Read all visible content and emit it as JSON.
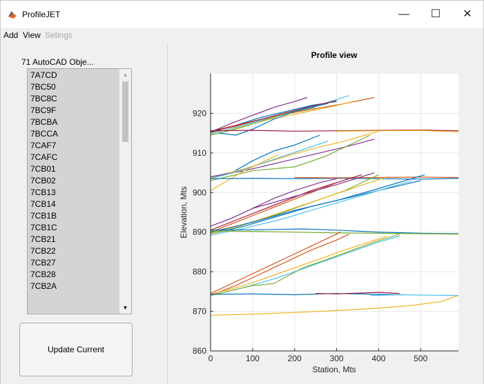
{
  "window": {
    "title": "ProfileJET"
  },
  "window_controls": {
    "minimize": "—",
    "maximize": "☐",
    "close": "✕"
  },
  "menu": {
    "items": [
      "Add",
      "View",
      "Setings"
    ]
  },
  "left_panel": {
    "list_label": "71 AutoCAD Obje...",
    "items": [
      "7A7CD",
      "7BC50",
      "7BC8C",
      "7BC9F",
      "7BCBA",
      "7BCCA",
      "7CAF7",
      "7CAFC",
      "7CB01",
      "7CB02",
      "7CB13",
      "7CB14",
      "7CB1B",
      "7CB1C",
      "7CB21",
      "7CB22",
      "7CB27",
      "7CB28",
      "7CB2A"
    ],
    "update_button": "Update Current"
  },
  "chart_data": {
    "type": "line",
    "title": "Profile view",
    "xlabel": "Station, Mts",
    "ylabel": "Elevation, Mts",
    "xlim": [
      0,
      590
    ],
    "ylim": [
      860,
      930
    ],
    "xticks": [
      0,
      100,
      200,
      300,
      400,
      500
    ],
    "yticks": [
      860,
      870,
      880,
      890,
      900,
      910,
      920
    ],
    "grid": true,
    "colors": [
      "#0072bd",
      "#d95319",
      "#edb120",
      "#7e2f8e",
      "#77ac30",
      "#4dbeee",
      "#a2142f"
    ],
    "series": [
      {
        "color": "#0072bd",
        "x": [
          0,
          60,
          120,
          180,
          240,
          300
        ],
        "y": [
          915.2,
          917.0,
          919.0,
          920.5,
          922.0,
          923.0
        ]
      },
      {
        "color": "#d95319",
        "x": [
          0,
          80,
          160,
          240,
          320,
          390
        ],
        "y": [
          915.5,
          917.5,
          919.5,
          921.0,
          922.5,
          924.0
        ]
      },
      {
        "color": "#edb120",
        "x": [
          0,
          70,
          140,
          210,
          280,
          340
        ],
        "y": [
          915.0,
          916.5,
          918.5,
          920.0,
          921.5,
          923.0
        ]
      },
      {
        "color": "#7e2f8e",
        "x": [
          0,
          50,
          100,
          150,
          200,
          230
        ],
        "y": [
          915.3,
          917.5,
          919.5,
          921.5,
          923.0,
          924.0
        ]
      },
      {
        "color": "#4dbeee",
        "x": [
          0,
          60,
          130,
          200,
          270,
          330
        ],
        "y": [
          914.8,
          916.5,
          918.5,
          920.5,
          922.5,
          924.5
        ]
      },
      {
        "color": "#77ac30",
        "x": [
          0,
          60,
          120,
          180,
          250
        ],
        "y": [
          914.5,
          916.0,
          918.0,
          920.0,
          921.5
        ]
      },
      {
        "color": "#a2142f",
        "x": [
          0,
          60,
          120,
          180,
          240,
          300
        ],
        "y": [
          915.4,
          916.8,
          918.5,
          920.2,
          921.8,
          923.2
        ]
      },
      {
        "color": "#0072bd",
        "x": [
          20,
          60,
          100,
          150,
          200,
          280
        ],
        "y": [
          915.0,
          914.5,
          916.0,
          918.5,
          920.5,
          922.5
        ]
      },
      {
        "color": "#a2142f",
        "x": [
          0,
          100,
          200,
          300,
          400,
          500,
          590
        ],
        "y": [
          915.6,
          915.7,
          915.5,
          915.6,
          915.7,
          915.8,
          915.6
        ]
      },
      {
        "color": "#edb120",
        "x": [
          300,
          400,
          500,
          590
        ],
        "y": [
          915.5,
          915.6,
          915.7,
          915.3
        ]
      },
      {
        "color": "#0072bd",
        "x": [
          0,
          50,
          100,
          150,
          200,
          260
        ],
        "y": [
          903.5,
          905.0,
          908.0,
          910.5,
          912.0,
          914.5
        ]
      },
      {
        "color": "#edb120",
        "x": [
          0,
          80,
          160,
          240,
          320,
          400
        ],
        "y": [
          903.8,
          906.0,
          908.5,
          911.0,
          913.0,
          915.5
        ]
      },
      {
        "color": "#7e2f8e",
        "x": [
          0,
          80,
          160,
          240,
          320,
          390
        ],
        "y": [
          904.0,
          905.5,
          907.5,
          909.5,
          911.5,
          913.5
        ]
      },
      {
        "color": "#77ac30",
        "x": [
          0,
          100,
          200,
          270,
          330,
          380
        ],
        "y": [
          903.0,
          905.5,
          906.5,
          909.0,
          912.0,
          914.5
        ]
      },
      {
        "color": "#4dbeee",
        "x": [
          0,
          70,
          140,
          210,
          280
        ],
        "y": [
          903.5,
          905.5,
          908.0,
          910.5,
          913.0
        ]
      },
      {
        "color": "#edb120",
        "x": [
          0,
          40,
          80,
          120,
          160
        ],
        "y": [
          900.5,
          903.0,
          905.5,
          907.5,
          909.5
        ]
      },
      {
        "color": "#0072bd",
        "x": [
          0,
          100,
          200,
          300,
          400,
          500,
          590
        ],
        "y": [
          903.5,
          903.6,
          903.5,
          903.6,
          903.5,
          903.4,
          903.6
        ]
      },
      {
        "color": "#d95319",
        "x": [
          200,
          300,
          400,
          500,
          590
        ],
        "y": [
          903.8,
          903.7,
          903.8,
          903.9,
          903.8
        ]
      },
      {
        "color": "#0072bd",
        "x": [
          0,
          80,
          160,
          240,
          320,
          400,
          500
        ],
        "y": [
          889.5,
          891.5,
          894.0,
          896.5,
          898.5,
          900.5,
          903.0
        ]
      },
      {
        "color": "#d95319",
        "x": [
          0,
          60,
          120,
          180,
          240,
          300
        ],
        "y": [
          890.0,
          892.5,
          895.0,
          897.5,
          900.0,
          902.5
        ]
      },
      {
        "color": "#7e2f8e",
        "x": [
          0,
          50,
          100,
          150,
          200,
          260,
          300
        ],
        "y": [
          891.5,
          893.5,
          896.0,
          898.5,
          900.5,
          902.5,
          903.5
        ]
      },
      {
        "color": "#77ac30",
        "x": [
          0,
          80,
          160,
          240,
          320,
          400
        ],
        "y": [
          889.8,
          892.0,
          894.5,
          897.5,
          900.5,
          904.5
        ]
      },
      {
        "color": "#4dbeee",
        "x": [
          0,
          80,
          160,
          240,
          320,
          400,
          480
        ],
        "y": [
          889.2,
          891.0,
          893.0,
          895.5,
          898.0,
          900.5,
          903.0
        ]
      },
      {
        "color": "#edb120",
        "x": [
          0,
          70,
          140,
          210,
          280,
          350,
          420
        ],
        "y": [
          889.5,
          891.5,
          894.0,
          896.5,
          899.0,
          901.5,
          904.0
        ]
      },
      {
        "color": "#a2142f",
        "x": [
          0,
          60,
          120,
          180,
          240,
          300,
          360
        ],
        "y": [
          890.5,
          893.0,
          895.5,
          898.0,
          900.5,
          902.5,
          904.5
        ]
      },
      {
        "color": "#0072bd",
        "x": [
          0,
          100,
          200,
          300,
          400,
          510
        ],
        "y": [
          890.0,
          892.5,
          895.5,
          898.0,
          901.0,
          904.5
        ]
      },
      {
        "color": "#7e2f8e",
        "x": [
          100,
          200,
          300,
          390
        ],
        "y": [
          896.0,
          899.0,
          902.0,
          905.0
        ]
      },
      {
        "color": "#0072bd",
        "x": [
          0,
          100,
          220,
          300,
          400,
          500,
          590
        ],
        "y": [
          890.5,
          890.6,
          890.8,
          890.5,
          890.0,
          889.7,
          889.6
        ]
      },
      {
        "color": "#77ac30",
        "x": [
          0,
          100,
          200,
          300,
          400,
          500,
          590
        ],
        "y": [
          890.3,
          890.2,
          890.0,
          889.8,
          889.7,
          889.6,
          889.5
        ]
      },
      {
        "color": "#d95319",
        "x": [
          0,
          60,
          120,
          180,
          240,
          310
        ],
        "y": [
          874.5,
          877.5,
          880.5,
          883.5,
          886.5,
          890.0
        ]
      },
      {
        "color": "#d95319",
        "x": [
          0,
          60,
          120,
          180,
          240,
          300,
          330
        ],
        "y": [
          874.0,
          876.5,
          879.5,
          882.5,
          885.5,
          888.0,
          889.5
        ]
      },
      {
        "color": "#edb120",
        "x": [
          0,
          80,
          160,
          240,
          320,
          420
        ],
        "y": [
          874.3,
          876.5,
          879.5,
          882.5,
          885.5,
          889.0
        ]
      },
      {
        "color": "#4dbeee",
        "x": [
          0,
          80,
          160,
          240,
          320,
          400,
          450
        ],
        "y": [
          874.0,
          876.0,
          878.5,
          881.5,
          884.5,
          887.5,
          889.0
        ]
      },
      {
        "color": "#77ac30",
        "x": [
          0,
          100,
          150,
          220,
          300,
          390,
          450
        ],
        "y": [
          874.0,
          876.5,
          877.0,
          881.0,
          884.0,
          887.5,
          889.5
        ]
      },
      {
        "color": "#0072bd",
        "x": [
          0,
          100,
          200,
          300,
          400,
          460
        ],
        "y": [
          874.3,
          874.4,
          874.2,
          874.5,
          874.3,
          874.2
        ]
      },
      {
        "color": "#a2142f",
        "x": [
          250,
          300,
          350,
          400,
          450
        ],
        "y": [
          874.5,
          874.4,
          874.6,
          874.8,
          874.5
        ]
      },
      {
        "color": "#4dbeee",
        "x": [
          380,
          450,
          500,
          590
        ],
        "y": [
          874.0,
          874.2,
          874.1,
          874.0
        ]
      },
      {
        "color": "#edb120",
        "x": [
          0,
          100,
          200,
          300,
          400,
          480,
          550,
          590
        ],
        "y": [
          869.0,
          869.3,
          869.7,
          870.2,
          870.8,
          871.5,
          872.5,
          874.0
        ]
      }
    ]
  }
}
